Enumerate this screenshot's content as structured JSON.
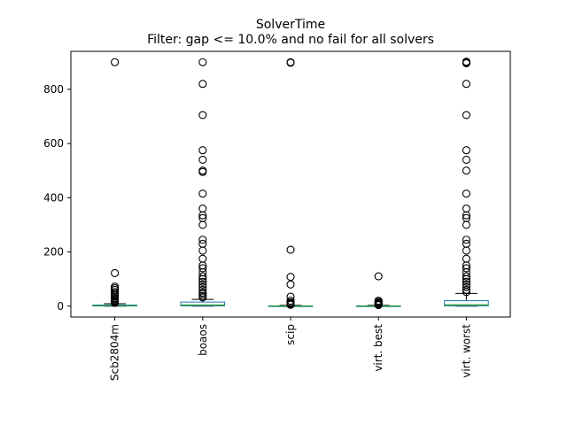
{
  "chart_data": {
    "type": "box",
    "title": "SolverTime",
    "subtitle": "Filter: gap <= 10.0% and no fail for all solvers",
    "xlabel": "",
    "ylabel": "",
    "ylim": [
      -40,
      940
    ],
    "yticks": [
      0,
      200,
      400,
      600,
      800
    ],
    "grid": false,
    "colors": {
      "box": "#1f77b4",
      "median": "#2ca02c",
      "whisker": "#000000",
      "flier": "#000000"
    },
    "categories": [
      "Scb2804m",
      "boaos",
      "scip",
      "virt. best",
      "virt. worst"
    ],
    "boxes": [
      {
        "name": "Scb2804m",
        "whislo": 0,
        "q1": 0.5,
        "med": 1.5,
        "q3": 4,
        "whishi": 9,
        "fliers": [
          900,
          122,
          72,
          66,
          60,
          52,
          46,
          40,
          35,
          30,
          26,
          22,
          18,
          15,
          12
        ]
      },
      {
        "name": "boaos",
        "whislo": 0,
        "q1": 1,
        "med": 4,
        "q3": 15,
        "whishi": 25,
        "fliers": [
          900,
          820,
          705,
          575,
          540,
          500,
          495,
          415,
          360,
          335,
          325,
          300,
          245,
          230,
          205,
          175,
          150,
          140,
          125,
          110,
          100,
          90,
          80,
          70,
          60,
          50,
          45,
          38,
          32
        ]
      },
      {
        "name": "scip",
        "whislo": 0,
        "q1": 0,
        "med": 0.5,
        "q3": 1,
        "whishi": 3,
        "fliers": [
          900,
          898,
          208,
          108,
          80,
          35,
          20,
          14,
          10,
          7,
          5
        ]
      },
      {
        "name": "virt. best",
        "whislo": 0,
        "q1": 0,
        "med": 0.5,
        "q3": 1,
        "whishi": 3,
        "fliers": [
          110,
          20,
          16,
          12,
          10,
          8,
          6,
          5,
          4
        ]
      },
      {
        "name": "virt. worst",
        "whislo": 0,
        "q1": 1,
        "med": 5,
        "q3": 20,
        "whishi": 47,
        "fliers": [
          902,
          899,
          896,
          820,
          705,
          575,
          540,
          500,
          415,
          360,
          335,
          325,
          300,
          245,
          230,
          205,
          175,
          150,
          140,
          125,
          110,
          100,
          90,
          80,
          70,
          60,
          52
        ]
      }
    ]
  }
}
